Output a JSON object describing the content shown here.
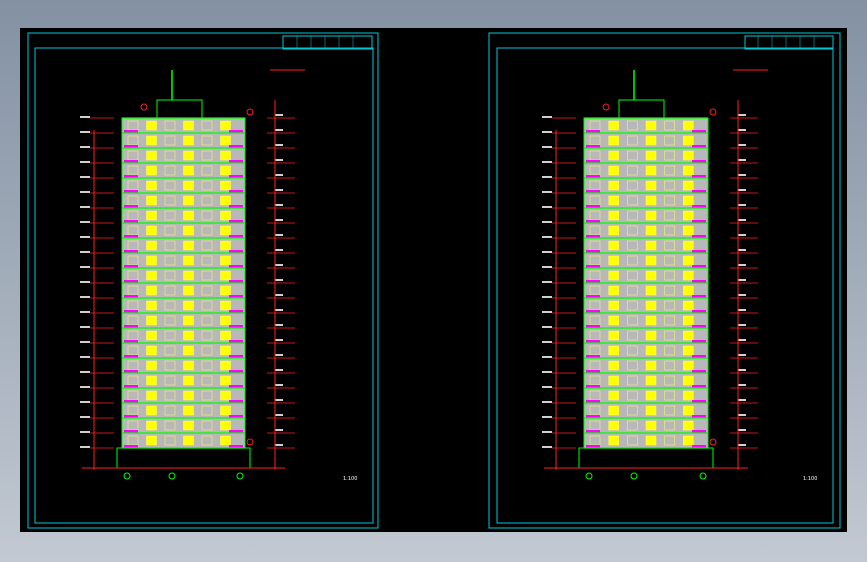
{
  "sheets": [
    {
      "scale": "1:100"
    },
    {
      "scale": "1:100"
    }
  ]
}
